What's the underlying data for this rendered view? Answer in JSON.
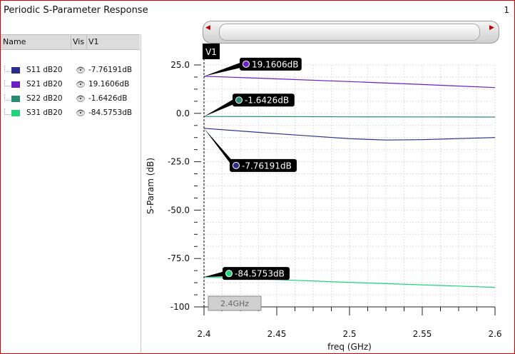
{
  "window": {
    "title": "Periodic S-Parameter Response",
    "page": "1"
  },
  "legend": {
    "columns": [
      "Name",
      "Vis",
      "V1"
    ],
    "items": [
      {
        "name": "S11 dB20",
        "value": "-7.76191dB",
        "color": "#2c2c8c"
      },
      {
        "name": "S21 dB20",
        "value": "19.1606dB",
        "color": "#6a1fc8"
      },
      {
        "name": "S22 dB20",
        "value": "-1.6426dB",
        "color": "#2a8c74"
      },
      {
        "name": "S31 dB20",
        "value": "-84.5753dB",
        "color": "#1ed37a"
      }
    ]
  },
  "marker": {
    "name": "V1",
    "x": 2.4,
    "readout": "2.4GHz"
  },
  "chart_data": {
    "type": "line",
    "xlabel": "freq (GHz)",
    "ylabel": "S-Param (dB)",
    "xlim": [
      2.4,
      2.6
    ],
    "ylim": [
      -100,
      25
    ],
    "xticks": [
      "2.4",
      "2.45",
      "2.5",
      "2.55",
      "2.6"
    ],
    "yticks": [
      "25.0",
      "0.0",
      "-25.0",
      "-50.0",
      "-75.0",
      "-100"
    ],
    "grid": true,
    "series": [
      {
        "name": "S11 dB20",
        "color": "#2c2c8c",
        "x": [
          2.4,
          2.45,
          2.5,
          2.525,
          2.55,
          2.6
        ],
        "y": [
          -7.76,
          -10.5,
          -13.1,
          -13.8,
          -13.6,
          -12.5
        ]
      },
      {
        "name": "S21 dB20",
        "color": "#6a1fc8",
        "x": [
          2.4,
          2.45,
          2.5,
          2.55,
          2.6
        ],
        "y": [
          19.16,
          17.8,
          16.4,
          14.9,
          13.3
        ]
      },
      {
        "name": "S22 dB20",
        "color": "#2a8c74",
        "x": [
          2.4,
          2.45,
          2.5,
          2.55,
          2.6
        ],
        "y": [
          -1.64,
          -1.7,
          -1.8,
          -1.85,
          -1.9
        ]
      },
      {
        "name": "S31 dB20",
        "color": "#1ed37a",
        "x": [
          2.4,
          2.45,
          2.5,
          2.55,
          2.6
        ],
        "y": [
          -84.58,
          -85.9,
          -87.3,
          -88.6,
          -89.9
        ]
      }
    ],
    "annotations": [
      {
        "series": "S21 dB20",
        "text": "19.1606dB",
        "x": 2.4,
        "y": 19.16
      },
      {
        "series": "S22 dB20",
        "text": "-1.6426dB",
        "x": 2.4,
        "y": -1.64
      },
      {
        "series": "S11 dB20",
        "text": "-7.76191dB",
        "x": 2.4,
        "y": -7.76
      },
      {
        "series": "S31 dB20",
        "text": "-84.5753dB",
        "x": 2.4,
        "y": -84.58
      }
    ]
  }
}
